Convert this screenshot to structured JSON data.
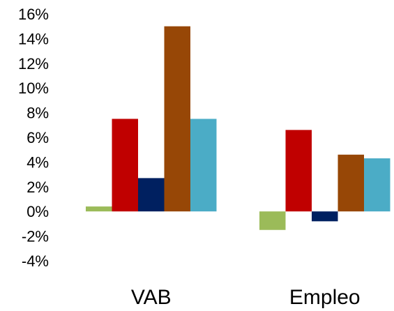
{
  "chart_data": {
    "type": "bar",
    "categories": [
      "VAB",
      "Empleo"
    ],
    "series": [
      {
        "color": "#9bbb59",
        "values": [
          0.4,
          -1.5
        ]
      },
      {
        "color": "#c00000",
        "values": [
          7.5,
          6.6
        ]
      },
      {
        "color": "#002060",
        "values": [
          2.7,
          -0.8
        ]
      },
      {
        "color": "#974706",
        "values": [
          15.0,
          4.6
        ]
      },
      {
        "color": "#4bacc6",
        "values": [
          7.5,
          4.3
        ]
      }
    ],
    "yticks": [
      "16%",
      "14%",
      "12%",
      "10%",
      "8%",
      "6%",
      "4%",
      "2%",
      "0%",
      "-2%",
      "-4%"
    ],
    "ylim": [
      -4,
      16
    ],
    "grid": false,
    "legend": "none"
  }
}
